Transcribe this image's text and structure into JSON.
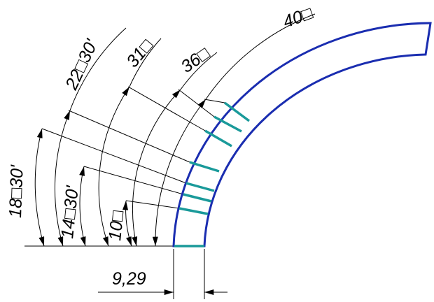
{
  "angle_labels": [
    "40□",
    "36□",
    "31□",
    "22□30'",
    "18□30'",
    "14□30'",
    "10□"
  ],
  "width_label": "9,29"
}
